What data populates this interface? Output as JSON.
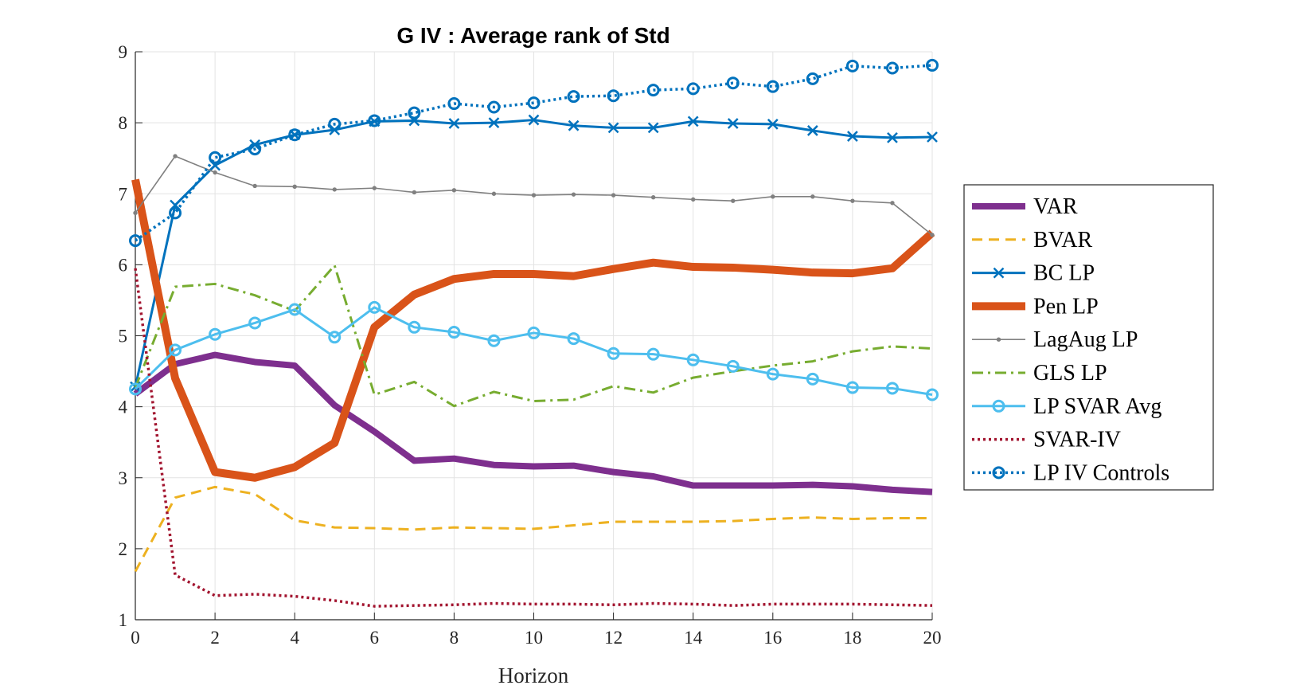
{
  "chart_data": {
    "type": "line",
    "title": "G IV : Average rank of Std",
    "xlabel": "Horizon",
    "ylabel": "",
    "xlim": [
      0,
      20
    ],
    "ylim": [
      1,
      9
    ],
    "xticks": [
      0,
      2,
      4,
      6,
      8,
      10,
      12,
      14,
      16,
      18,
      20
    ],
    "yticks": [
      1,
      2,
      3,
      4,
      5,
      6,
      7,
      8,
      9
    ],
    "grid": true,
    "legend_position": "right",
    "x": [
      0,
      1,
      2,
      3,
      4,
      5,
      6,
      7,
      8,
      9,
      10,
      11,
      12,
      13,
      14,
      15,
      16,
      17,
      18,
      19,
      20
    ],
    "series": [
      {
        "name": "VAR",
        "color": "#7E2F8E",
        "style": "solid",
        "marker": "none",
        "values": [
          4.18,
          4.6,
          4.73,
          4.63,
          4.58,
          4.02,
          3.65,
          3.24,
          3.27,
          3.18,
          3.16,
          3.17,
          3.08,
          3.02,
          2.89,
          2.89,
          2.89,
          2.9,
          2.88,
          2.83,
          2.8
        ]
      },
      {
        "name": "BVAR",
        "color": "#EDB120",
        "style": "dashed",
        "marker": "none",
        "values": [
          1.68,
          2.72,
          2.87,
          2.77,
          2.4,
          2.3,
          2.29,
          2.27,
          2.3,
          2.29,
          2.28,
          2.33,
          2.38,
          2.38,
          2.38,
          2.39,
          2.42,
          2.44,
          2.42,
          2.43,
          2.43
        ]
      },
      {
        "name": "BC LP",
        "color": "#0072BD",
        "style": "solid",
        "marker": "x",
        "values": [
          4.28,
          6.84,
          7.4,
          7.69,
          7.83,
          7.9,
          8.02,
          8.03,
          7.99,
          8.0,
          8.04,
          7.96,
          7.93,
          7.93,
          8.02,
          7.99,
          7.98,
          7.89,
          7.81,
          7.79,
          7.8
        ]
      },
      {
        "name": "Pen LP",
        "color": "#D95319",
        "style": "solid",
        "marker": "none",
        "values": [
          7.2,
          4.4,
          3.08,
          3.0,
          3.15,
          3.49,
          5.12,
          5.58,
          5.8,
          5.87,
          5.87,
          5.84,
          5.94,
          6.03,
          5.97,
          5.96,
          5.93,
          5.89,
          5.88,
          5.95,
          6.45
        ]
      },
      {
        "name": "LagAug LP",
        "color": "#808080",
        "style": "solid",
        "marker": "dot",
        "values": [
          6.73,
          7.53,
          7.3,
          7.11,
          7.1,
          7.06,
          7.08,
          7.02,
          7.05,
          7.0,
          6.98,
          6.99,
          6.98,
          6.95,
          6.92,
          6.9,
          6.96,
          6.96,
          6.9,
          6.87,
          6.42
        ]
      },
      {
        "name": "GLS LP",
        "color": "#77AC30",
        "style": "dashdot",
        "marker": "none",
        "values": [
          4.27,
          5.69,
          5.73,
          5.57,
          5.35,
          5.99,
          4.17,
          4.35,
          4.01,
          4.21,
          4.08,
          4.1,
          4.29,
          4.2,
          4.41,
          4.5,
          4.58,
          4.64,
          4.78,
          4.85,
          4.82
        ]
      },
      {
        "name": "LP SVAR Avg",
        "color": "#4DBEEE",
        "style": "solid",
        "marker": "o",
        "values": [
          4.25,
          4.8,
          5.02,
          5.18,
          5.37,
          4.98,
          5.4,
          5.12,
          5.05,
          4.93,
          5.04,
          4.96,
          4.75,
          4.74,
          4.66,
          4.57,
          4.46,
          4.39,
          4.27,
          4.26,
          4.17
        ]
      },
      {
        "name": "SVAR-IV",
        "color": "#A2142F",
        "style": "dotted",
        "marker": "none",
        "values": [
          5.95,
          1.63,
          1.34,
          1.36,
          1.33,
          1.27,
          1.19,
          1.2,
          1.21,
          1.23,
          1.22,
          1.22,
          1.21,
          1.23,
          1.22,
          1.2,
          1.22,
          1.22,
          1.22,
          1.21,
          1.2
        ]
      },
      {
        "name": "LP IV Controls",
        "color": "#0072BD",
        "style": "dotted",
        "marker": "o",
        "values": [
          6.34,
          6.73,
          7.51,
          7.63,
          7.83,
          7.98,
          8.03,
          8.14,
          8.27,
          8.22,
          8.28,
          8.37,
          8.38,
          8.46,
          8.48,
          8.56,
          8.51,
          8.62,
          8.8,
          8.77,
          8.81
        ]
      }
    ]
  }
}
